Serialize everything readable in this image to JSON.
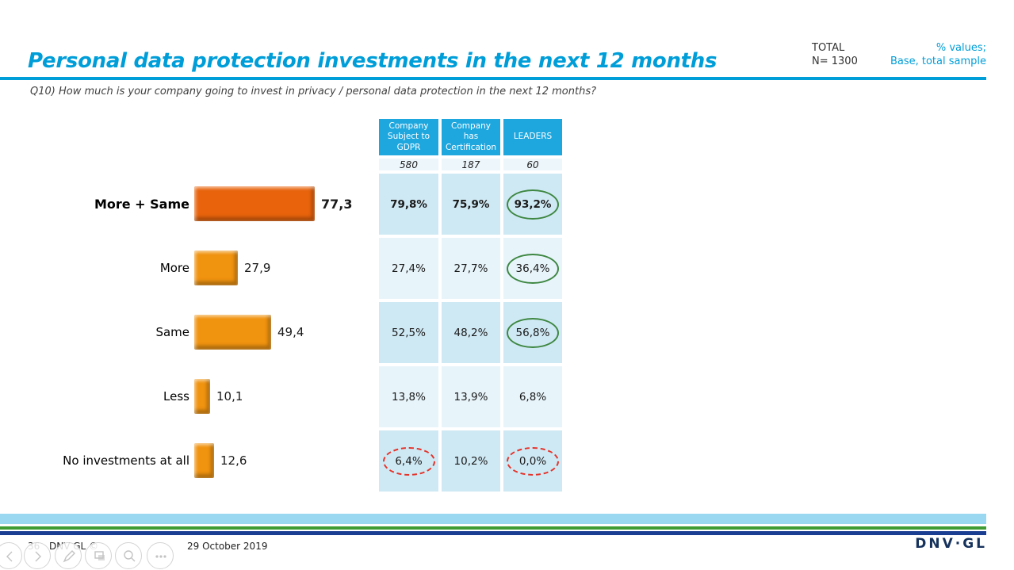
{
  "header": {
    "title": "Personal data protection investments in the next 12 months",
    "total": {
      "label": "TOTAL",
      "n": "N= 1300"
    },
    "note": {
      "line1": "% values;",
      "line2": "Base, total sample"
    },
    "question": "Q10) How much is your company going to invest in privacy / personal data protection in the next 12 months?"
  },
  "chart_data": {
    "type": "bar",
    "orientation": "horizontal",
    "title": "Personal data protection investments in the next 12 months",
    "categories": [
      "More + Same",
      "More",
      "Same",
      "Less",
      "No investments at all"
    ],
    "values": [
      77.3,
      27.9,
      49.4,
      10.1,
      12.6
    ],
    "value_labels": [
      "77,3",
      "27,9",
      "49,4",
      "10,1",
      "12,6"
    ],
    "xlim": [
      0,
      100
    ],
    "axis": "none",
    "grid": false,
    "legend": "none",
    "bar_colors": [
      "#E8630C",
      "#F0930F",
      "#F0930F",
      "#F0930F",
      "#F0930F"
    ]
  },
  "comparison_table": {
    "columns": [
      "Company Subject to GDPR",
      "Company has Certification",
      "LEADERS"
    ],
    "bases": [
      "580",
      "187",
      "60"
    ],
    "rows": [
      {
        "label": "More + Same",
        "values": [
          "79,8%",
          "75,9%",
          "93,2%"
        ],
        "emphasis": true,
        "circled": [
          "",
          "",
          "green"
        ]
      },
      {
        "label": "More",
        "values": [
          "27,4%",
          "27,7%",
          "36,4%"
        ],
        "emphasis": false,
        "circled": [
          "",
          "",
          "green"
        ]
      },
      {
        "label": "Same",
        "values": [
          "52,5%",
          "48,2%",
          "56,8%"
        ],
        "emphasis": false,
        "circled": [
          "",
          "",
          "green"
        ]
      },
      {
        "label": "Less",
        "values": [
          "13,8%",
          "13,9%",
          "6,8%"
        ],
        "emphasis": false,
        "circled": [
          "",
          "",
          ""
        ]
      },
      {
        "label": "No investments at all",
        "values": [
          "6,4%",
          "10,2%",
          "0,0%"
        ],
        "emphasis": false,
        "circled": [
          "red",
          "",
          "red"
        ]
      }
    ]
  },
  "footer": {
    "slide_number": "36",
    "copyright": "DNV GL ©",
    "date": "29 October 2019",
    "logo": "DNV·GL"
  },
  "colors": {
    "accent": "#009ED9",
    "table_header": "#1EA7DF",
    "row_dark": "#CFE9F4",
    "row_light": "#E7F4FA",
    "base_row": "#EDF6FB",
    "bar_primary": "#E8630C",
    "bar_secondary": "#F0930F",
    "band_light_blue": "#99D8F0",
    "band_green": "#3F9C35",
    "band_navy": "#1A3E91",
    "logo_navy": "#16325C",
    "oval_green": "#3E8742",
    "oval_red": "#E63229"
  }
}
